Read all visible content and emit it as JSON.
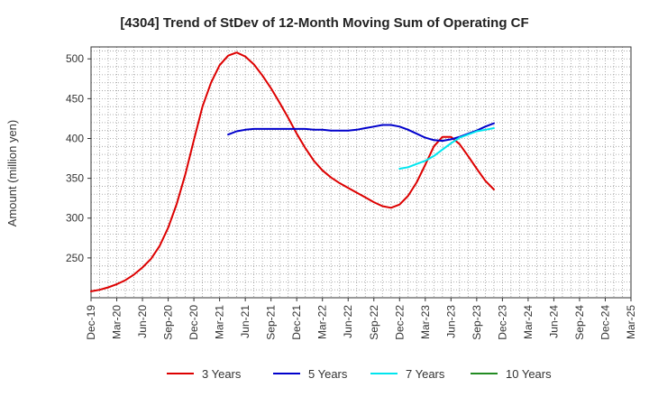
{
  "chart_data": {
    "type": "line",
    "title": "[4304]  Trend of StDev of 12-Month Moving Sum of Operating CF",
    "xlabel": "",
    "ylabel": "Amount (million yen)",
    "ylim": [
      200,
      515
    ],
    "yticks": [
      250,
      300,
      350,
      400,
      450,
      500
    ],
    "xticks": [
      "Dec-19",
      "Mar-20",
      "Jun-20",
      "Sep-20",
      "Dec-20",
      "Mar-21",
      "Jun-21",
      "Sep-21",
      "Dec-21",
      "Mar-22",
      "Jun-22",
      "Sep-22",
      "Dec-22",
      "Mar-23",
      "Jun-23",
      "Sep-23",
      "Dec-23",
      "Mar-24",
      "Jun-24",
      "Sep-24",
      "Dec-24",
      "Mar-25"
    ],
    "grid": true,
    "legend_position": "bottom",
    "series": [
      {
        "name": "3 Years",
        "color": "#dd0000",
        "points": [
          [
            0,
            208
          ],
          [
            1,
            210
          ],
          [
            2,
            213
          ],
          [
            3,
            217
          ],
          [
            4,
            222
          ],
          [
            5,
            229
          ],
          [
            6,
            238
          ],
          [
            7,
            249
          ],
          [
            8,
            265
          ],
          [
            9,
            288
          ],
          [
            10,
            318
          ],
          [
            11,
            355
          ],
          [
            12,
            398
          ],
          [
            13,
            440
          ],
          [
            14,
            470
          ],
          [
            15,
            492
          ],
          [
            16,
            504
          ],
          [
            17,
            508
          ],
          [
            18,
            503
          ],
          [
            19,
            493
          ],
          [
            20,
            479
          ],
          [
            21,
            463
          ],
          [
            22,
            445
          ],
          [
            23,
            426
          ],
          [
            24,
            406
          ],
          [
            25,
            388
          ],
          [
            26,
            372
          ],
          [
            27,
            360
          ],
          [
            28,
            351
          ],
          [
            29,
            344
          ],
          [
            30,
            338
          ],
          [
            31,
            332
          ],
          [
            32,
            326
          ],
          [
            33,
            320
          ],
          [
            34,
            315
          ],
          [
            35,
            313
          ],
          [
            36,
            317
          ],
          [
            37,
            328
          ],
          [
            38,
            345
          ],
          [
            39,
            367
          ],
          [
            40,
            390
          ],
          [
            41,
            402
          ],
          [
            42,
            402
          ],
          [
            43,
            393
          ],
          [
            44,
            378
          ],
          [
            45,
            362
          ],
          [
            46,
            347
          ],
          [
            47,
            336
          ]
        ]
      },
      {
        "name": "5 Years",
        "color": "#0000cc",
        "points": [
          [
            16,
            405
          ],
          [
            17,
            409
          ],
          [
            18,
            411
          ],
          [
            19,
            412
          ],
          [
            20,
            412
          ],
          [
            21,
            412
          ],
          [
            22,
            412
          ],
          [
            23,
            412
          ],
          [
            24,
            412
          ],
          [
            25,
            412
          ],
          [
            26,
            411
          ],
          [
            27,
            411
          ],
          [
            28,
            410
          ],
          [
            29,
            410
          ],
          [
            30,
            410
          ],
          [
            31,
            411
          ],
          [
            32,
            413
          ],
          [
            33,
            415
          ],
          [
            34,
            417
          ],
          [
            35,
            417
          ],
          [
            36,
            415
          ],
          [
            37,
            411
          ],
          [
            38,
            406
          ],
          [
            39,
            401
          ],
          [
            40,
            398
          ],
          [
            41,
            397
          ],
          [
            42,
            399
          ],
          [
            43,
            402
          ],
          [
            44,
            406
          ],
          [
            45,
            410
          ],
          [
            46,
            415
          ],
          [
            47,
            419
          ]
        ]
      },
      {
        "name": "7 Years",
        "color": "#00e5ee",
        "points": [
          [
            36,
            362
          ],
          [
            37,
            364
          ],
          [
            38,
            368
          ],
          [
            39,
            372
          ],
          [
            40,
            378
          ],
          [
            41,
            386
          ],
          [
            42,
            394
          ],
          [
            43,
            401
          ],
          [
            44,
            405
          ],
          [
            45,
            409
          ],
          [
            46,
            411
          ],
          [
            47,
            413
          ]
        ]
      },
      {
        "name": "10 Years",
        "color": "#228b22",
        "points": []
      }
    ]
  }
}
